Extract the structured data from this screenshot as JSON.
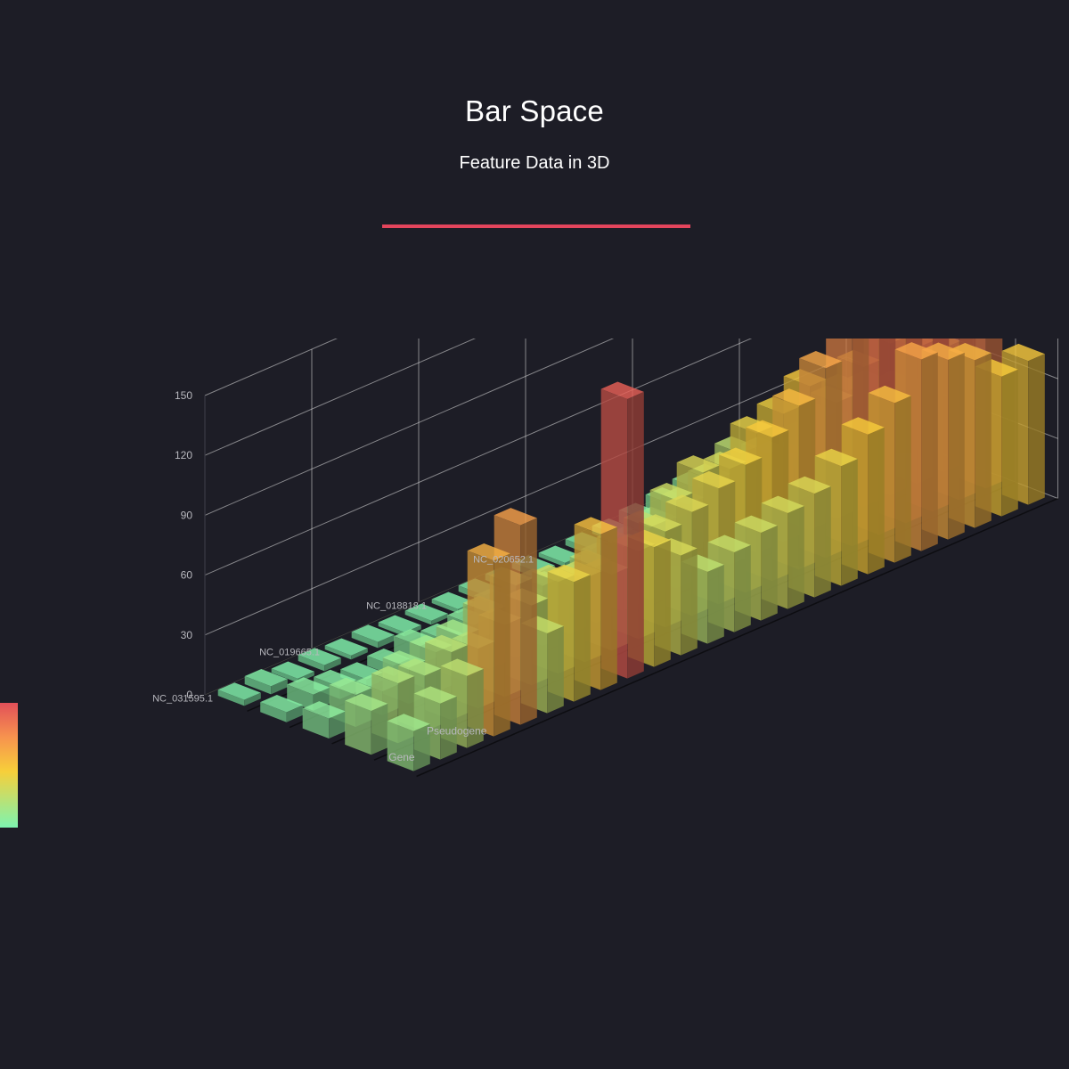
{
  "header": {
    "title": "Bar Space",
    "subtitle": "Feature Data in 3D"
  },
  "colors": {
    "background": "#1d1d26",
    "accent": "#e4455c",
    "grid": "#dcdcdc",
    "axis_text": "#b8b8be",
    "visual_map": [
      "#7df4b0",
      "#f7cf3a",
      "#f7944e",
      "#e25059"
    ]
  },
  "chart_data": {
    "type": "bar3d",
    "title": "Bar Space",
    "subtitle": "Feature Data in 3D",
    "zlim": [
      0,
      150
    ],
    "z_ticks": [
      0,
      30,
      60,
      90,
      120,
      150
    ],
    "x_categories": [
      "NC_031595.1",
      "NC_019665.1",
      "NC_018818.1",
      "NC_020652.1"
    ],
    "y_categories": [
      "Gene",
      "Pseudogene"
    ],
    "grid": true,
    "visual_map": {
      "min": 0,
      "max": 150,
      "placement": "left"
    },
    "series": [
      {
        "values": [
          [
            3,
            4,
            2,
            3,
            2,
            3,
            2,
            2,
            2,
            3,
            3,
            3,
            2,
            3,
            4,
            6,
            8,
            10,
            6,
            3,
            8,
            12,
            8,
            6
          ],
          [
            5,
            8,
            6,
            4,
            5,
            9,
            6,
            8,
            12,
            10,
            9,
            7,
            12,
            14,
            18,
            22,
            28,
            36,
            30,
            22,
            36,
            44,
            40,
            34
          ],
          [
            10,
            16,
            12,
            18,
            20,
            22,
            28,
            36,
            30,
            24,
            28,
            32,
            36,
            44,
            52,
            48,
            60,
            64,
            72,
            58,
            70,
            76,
            68,
            62
          ],
          [
            22,
            30,
            28,
            34,
            30,
            36,
            40,
            46,
            42,
            38,
            44,
            48,
            52,
            58,
            64,
            72,
            82,
            95,
            110,
            132,
            128,
            135,
            124,
            118
          ],
          [
            20,
            28,
            36,
            88,
            100,
            40,
            60,
            78,
            140,
            60,
            50,
            36,
            40,
            44,
            48,
            52,
            60,
            70,
            80,
            96,
            90,
            84,
            70,
            72
          ]
        ]
      }
    ]
  }
}
